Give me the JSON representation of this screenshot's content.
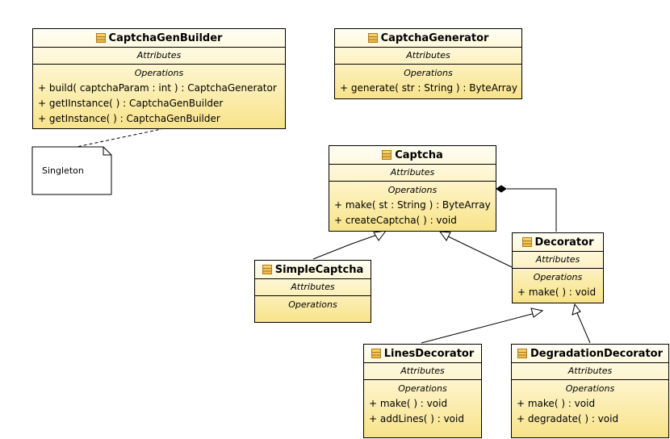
{
  "classes": {
    "captchaGenBuilder": {
      "name": "CaptchaGenBuilder",
      "attributes_label": "Attributes",
      "operations_label": "Operations",
      "operations": [
        "+ build( captchaParam : int ) : CaptchaGenerator",
        "+ getIInstance(  ) : CaptchaGenBuilder",
        "+ getInstance(  ) : CaptchaGenBuilder"
      ]
    },
    "captchaGenerator": {
      "name": "CaptchaGenerator",
      "attributes_label": "Attributes",
      "operations_label": "Operations",
      "operations": [
        "+ generate( str : String ) : ByteArray"
      ]
    },
    "captcha": {
      "name": "Captcha",
      "attributes_label": "Attributes",
      "operations_label": "Operations",
      "operations": [
        "+ make( st : String ) : ByteArray",
        "+ createCaptcha(  ) : void"
      ]
    },
    "simpleCaptcha": {
      "name": "SimpleCaptcha",
      "attributes_label": "Attributes",
      "operations_label": "Operations",
      "operations": []
    },
    "decorator": {
      "name": "Decorator",
      "attributes_label": "Attributes",
      "operations_label": "Operations",
      "operations": [
        "+ make(  ) : void"
      ]
    },
    "linesDecorator": {
      "name": "LinesDecorator",
      "attributes_label": "Attributes",
      "operations_label": "Operations",
      "operations": [
        "+ make(  ) : void",
        "+ addLines(  ) : void"
      ]
    },
    "degradationDecorator": {
      "name": "DegradationDecorator",
      "attributes_label": "Attributes",
      "operations_label": "Operations",
      "operations": [
        "+ make(  ) : void",
        "+ degradate(  ) : void"
      ]
    }
  },
  "note": {
    "text": "Singleton"
  },
  "relations": [
    {
      "type": "note-link",
      "from": "note",
      "to": "CaptchaGenBuilder"
    },
    {
      "type": "generalization",
      "from": "SimpleCaptcha",
      "to": "Captcha"
    },
    {
      "type": "generalization",
      "from": "Decorator",
      "to": "Captcha"
    },
    {
      "type": "composition",
      "from": "Decorator",
      "to": "Captcha"
    },
    {
      "type": "generalization",
      "from": "LinesDecorator",
      "to": "Decorator"
    },
    {
      "type": "generalization",
      "from": "DegradationDecorator",
      "to": "Decorator"
    }
  ],
  "colors": {
    "class_fill_top": "#fffef4",
    "class_fill_bottom": "#f8e389",
    "line": "#000000"
  }
}
